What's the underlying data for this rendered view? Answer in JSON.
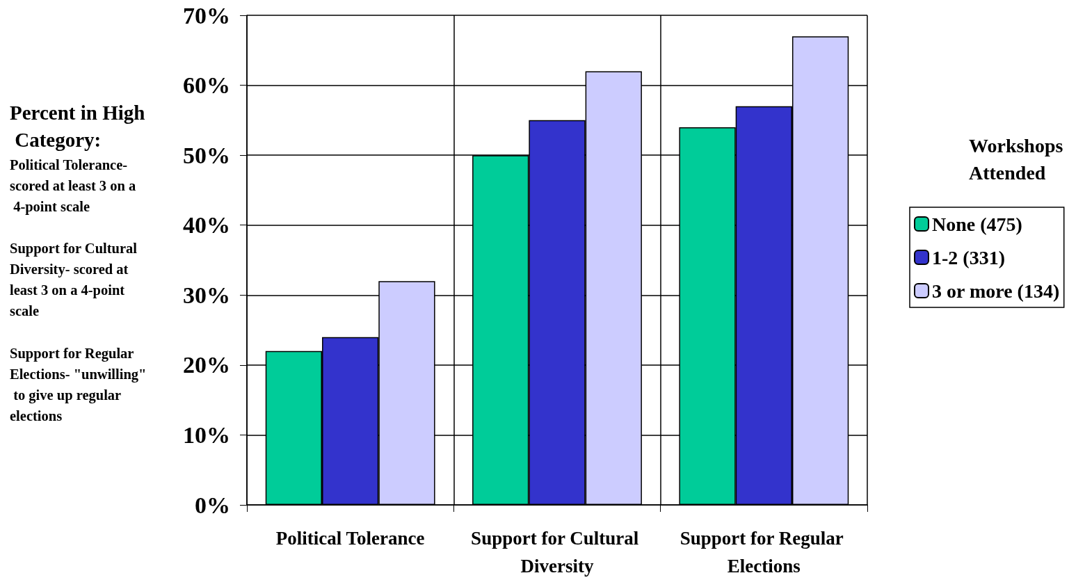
{
  "chart_data": {
    "type": "bar",
    "ylabel": "Percent in High Category:",
    "annotations": [
      "Political Tolerance- scored at least 3 on a 4-point scale",
      "Support for Cultural Diversity- scored at least 3 on a 4-point scale",
      "Support for Regular Elections- \"unwilling\" to give up regular elections"
    ],
    "legend_title": "Workshops Attended",
    "categories": [
      "Political Tolerance",
      "Support for Cultural Diversity",
      "Support for Regular Elections"
    ],
    "series": [
      {
        "name": "None (475)",
        "color": "#00cc99",
        "values": [
          22,
          50,
          54
        ]
      },
      {
        "name": "1-2 (331)",
        "color": "#3333cc",
        "values": [
          24,
          55,
          57
        ]
      },
      {
        "name": "3 or more (134)",
        "color": "#ccccff",
        "values": [
          32,
          62,
          67
        ]
      }
    ],
    "ylim": [
      0,
      70
    ],
    "yticks": [
      {
        "value": 0,
        "label": "0%"
      },
      {
        "value": 10,
        "label": "10%"
      },
      {
        "value": 20,
        "label": "20%"
      },
      {
        "value": 30,
        "label": "30%"
      },
      {
        "value": 40,
        "label": "40%"
      },
      {
        "value": 50,
        "label": "50%"
      },
      {
        "value": 60,
        "label": "60%"
      },
      {
        "value": 70,
        "label": "70%"
      }
    ],
    "grid": true,
    "legend": "right"
  }
}
